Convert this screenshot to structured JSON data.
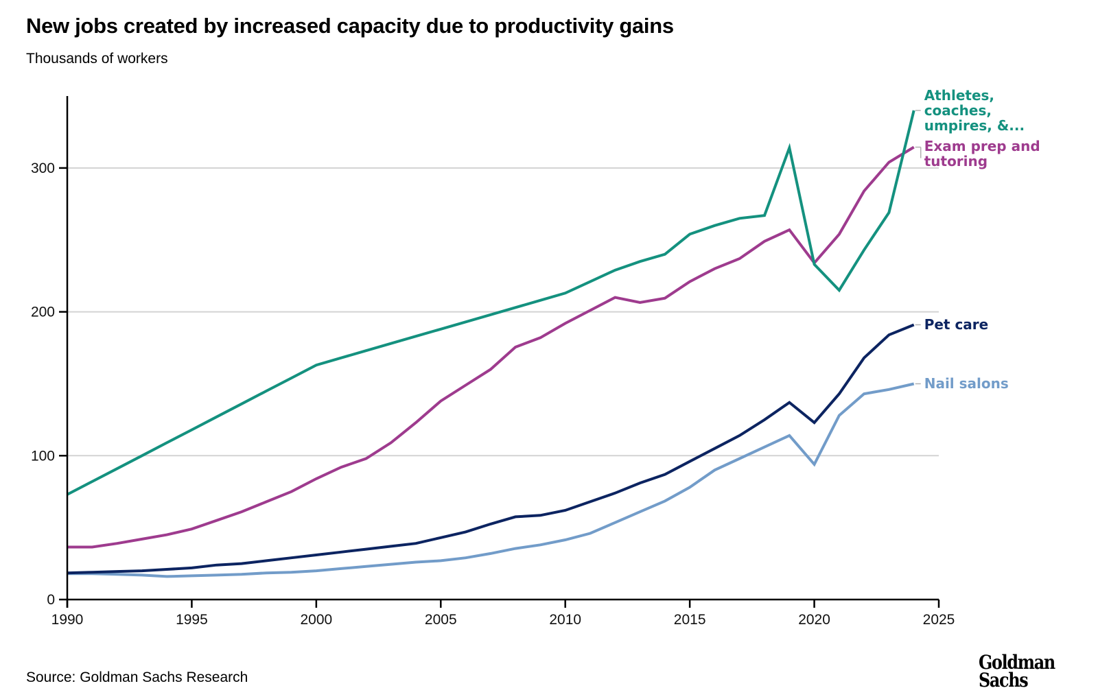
{
  "title": "New jobs created by increased capacity due to productivity gains",
  "subtitle": "Thousands of workers",
  "source": "Source: Goldman Sachs Research",
  "logo": {
    "line1": "Goldman",
    "line2": "Sachs"
  },
  "chart_data": {
    "type": "line",
    "title": "New jobs created by increased capacity due to productivity gains",
    "subtitle": "Thousands of workers",
    "xlabel": "",
    "ylabel": "Thousands of workers",
    "xlim": [
      1990,
      2025
    ],
    "ylim": [
      0,
      345
    ],
    "xticks": [
      1990,
      1995,
      2000,
      2005,
      2010,
      2015,
      2020,
      2025
    ],
    "yticks": [
      0,
      100,
      200,
      300
    ],
    "grid": "horizontal",
    "legend": "direct labels at line ends (right)",
    "x": [
      1990,
      1991,
      1992,
      1993,
      1994,
      1995,
      1996,
      1997,
      1998,
      1999,
      2000,
      2001,
      2002,
      2003,
      2004,
      2005,
      2006,
      2007,
      2008,
      2009,
      2010,
      2011,
      2012,
      2013,
      2014,
      2015,
      2016,
      2017,
      2018,
      2019,
      2020,
      2021,
      2022,
      2023,
      2024
    ],
    "series": [
      {
        "name": "Athletes, coaches, umpires, &...",
        "color": "#14917f",
        "values": [
          73,
          82,
          91,
          100,
          109,
          118,
          127,
          136,
          145,
          154,
          163,
          168,
          173,
          178,
          183,
          188,
          193,
          198,
          203,
          208,
          213,
          221,
          229,
          235,
          240,
          254,
          260,
          265,
          267,
          314,
          233,
          215,
          243,
          269,
          340
        ]
      },
      {
        "name": "Exam prep and tutoring",
        "color": "#9e3b8e",
        "values": [
          36.5,
          36.5,
          39,
          42,
          45,
          49,
          55,
          61,
          68,
          75,
          84,
          92,
          98,
          109,
          123,
          138,
          149,
          160,
          175.5,
          182,
          192,
          201,
          210,
          206.5,
          209.5,
          221,
          230,
          237,
          249,
          257,
          234,
          254,
          284,
          304,
          314.5
        ]
      },
      {
        "name": "Pet care",
        "color": "#0c2461",
        "values": [
          18.5,
          19,
          19.5,
          20,
          21,
          22,
          24,
          25,
          27,
          29,
          31,
          33,
          35,
          37,
          39,
          43,
          47,
          52.5,
          57.5,
          58.5,
          62,
          68,
          74,
          81,
          87,
          96,
          105,
          114,
          125,
          137,
          123,
          143,
          168,
          184,
          191
        ]
      },
      {
        "name": "Nail salons",
        "color": "#729cc9",
        "values": [
          18,
          18,
          17.5,
          17,
          16,
          16.5,
          17,
          17.5,
          18.5,
          19,
          20,
          21.5,
          23,
          24.5,
          26,
          27,
          29,
          32,
          35.5,
          38,
          41.5,
          46,
          53.5,
          61,
          68.5,
          78,
          90,
          98,
          106,
          114,
          94,
          128,
          143,
          146,
          150
        ]
      }
    ],
    "labels": [
      {
        "series": 0,
        "lines": [
          "Athletes,",
          "coaches,",
          "umpires, &..."
        ]
      },
      {
        "series": 1,
        "lines": [
          "Exam prep and",
          "tutoring"
        ]
      },
      {
        "series": 2,
        "lines": [
          "Pet care"
        ]
      },
      {
        "series": 3,
        "lines": [
          "Nail salons"
        ]
      }
    ]
  }
}
